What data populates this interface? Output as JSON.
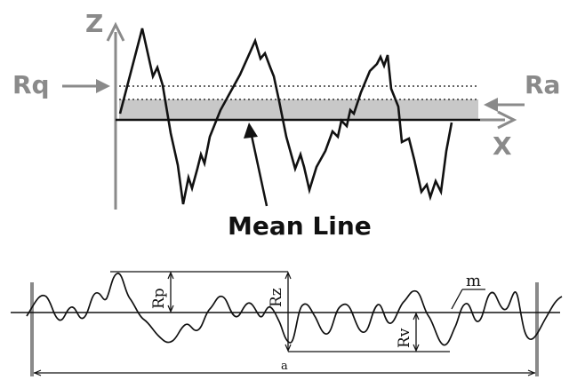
{
  "top_diagram": {
    "axis_y_label": "Z",
    "axis_x_label": "X",
    "rq_label": "Rq",
    "ra_label": "Ra",
    "mean_line_label": "Mean Line"
  },
  "bottom_diagram": {
    "rp_label": "Rp",
    "rz_label": "Rz",
    "rv_label": "Rv",
    "m_label": "m",
    "length_label": "a"
  },
  "colors": {
    "axis_gray": "#8a8a8a",
    "band_fill": "#c8c8c8",
    "line": "#111111"
  }
}
